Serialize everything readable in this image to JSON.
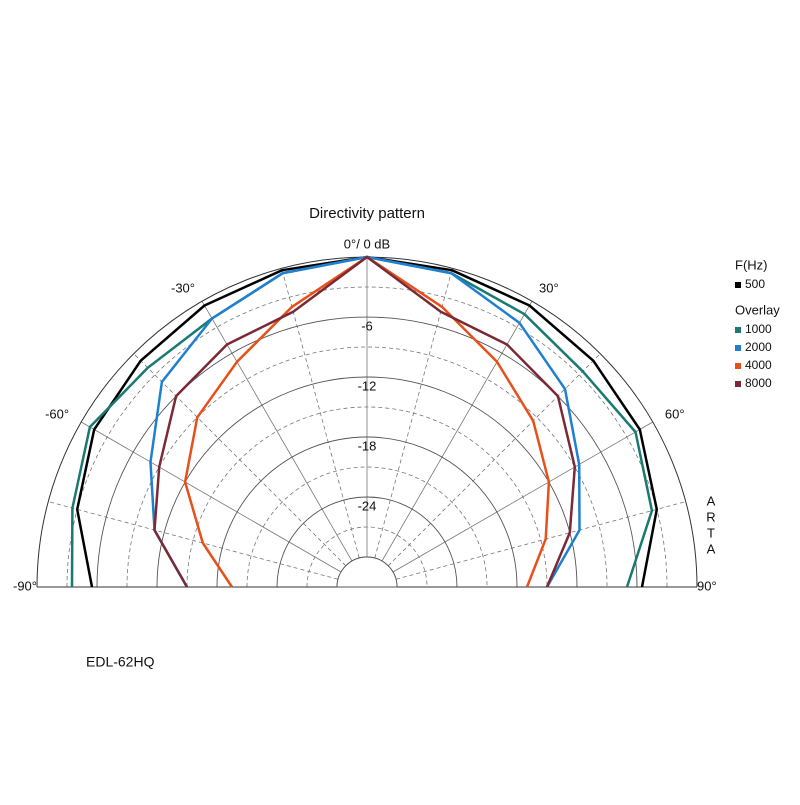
{
  "chart_data": {
    "type": "polar",
    "title": "Directivity pattern",
    "angles": [
      -90,
      -75,
      -60,
      -45,
      -30,
      -15,
      0,
      15,
      30,
      45,
      60,
      75,
      90
    ],
    "rlim": [
      -33,
      0
    ],
    "rticks": [
      -6,
      -12,
      -18,
      -24,
      -30
    ],
    "angle_ticks": [
      {
        "value": -90,
        "label": "-90°"
      },
      {
        "value": -60,
        "label": "-60°"
      },
      {
        "value": -30,
        "label": "-30°"
      },
      {
        "value": 0,
        "label": "0°/ 0 dB"
      },
      {
        "value": 30,
        "label": "30°"
      },
      {
        "value": 60,
        "label": "60°"
      },
      {
        "value": 90,
        "label": "90°"
      }
    ],
    "legend_title": "F(Hz)",
    "overlay_title": "Overlay",
    "series": [
      {
        "name": "500",
        "color": "#000000",
        "values": [
          -5.5,
          -3,
          -1.5,
          -1,
          -0.5,
          -0.2,
          0,
          -0.2,
          -0.5,
          -1,
          -1.5,
          -3,
          -5.5
        ]
      },
      {
        "name": "1000",
        "color": "#1a7a72",
        "values": [
          -3.5,
          -2.5,
          -1,
          -2,
          -2,
          -0.5,
          0,
          -0.5,
          -1.5,
          -2.5,
          -2,
          -3.5,
          -7
        ]
      },
      {
        "name": "2000",
        "color": "#1f7fd0",
        "values": [
          -15,
          -11,
          -8,
          -4,
          -2,
          -0.5,
          0,
          -0.5,
          -2.5,
          -5,
          -8.5,
          -11,
          -15
        ]
      },
      {
        "name": "4000",
        "color": "#e8501a",
        "values": [
          -19.5,
          -16,
          -12,
          -9,
          -7,
          -4,
          0,
          -4,
          -7,
          -9.5,
          -12,
          -14.5,
          -17
        ]
      },
      {
        "name": "8000",
        "color": "#7a2a35",
        "values": [
          -15,
          -11,
          -9,
          -6,
          -5,
          -4.5,
          0,
          -4.5,
          -5,
          -6,
          -9,
          -12,
          -15
        ]
      }
    ],
    "side_text": "ARTA",
    "footer": "EDL-62HQ"
  }
}
